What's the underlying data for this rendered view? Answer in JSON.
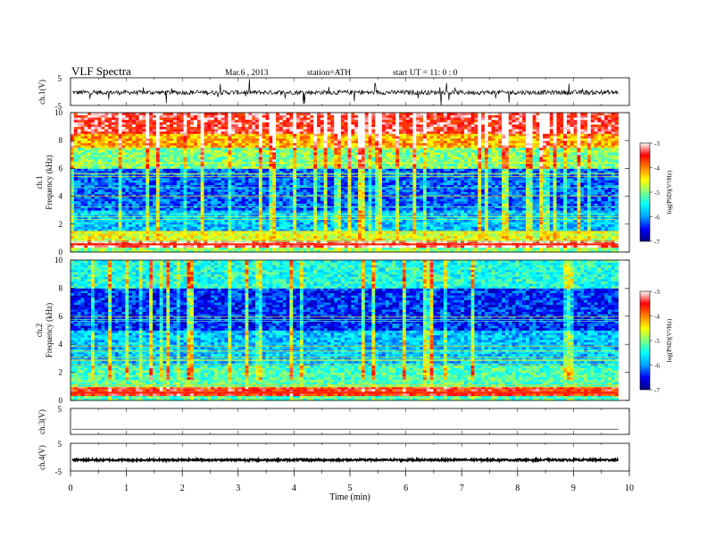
{
  "header": {
    "title": "VLF  Spectra",
    "date": "Mar.6  , 2013",
    "station": "station=ATH",
    "start": "start  UT =   11: 0  : 0"
  },
  "colorscale": {
    "stops": [
      "#000080",
      "#0000ff",
      "#00a0ff",
      "#00ffff",
      "#80ff80",
      "#ffff00",
      "#ff8000",
      "#ff0000",
      "#ffffff"
    ]
  },
  "chart_data": [
    {
      "type": "line",
      "name": "ch1-waveform",
      "ylabel": "ch.1(V)",
      "ylim": [
        -5,
        5
      ],
      "yticks": [
        "5",
        "-5"
      ],
      "xlim": [
        0,
        10
      ],
      "baseline": -0.3,
      "amplitude": 0.8,
      "spike_amplitude": 4.5
    },
    {
      "type": "heatmap",
      "name": "ch1-spectrogram",
      "ylabel": "ch.1\nFrequency (kHz)",
      "ylabel_lines": [
        "ch.1",
        "Frequency  (kHz)"
      ],
      "ylim": [
        0,
        10
      ],
      "yticks": [
        "0",
        "2",
        "4",
        "6",
        "8",
        "10"
      ],
      "xlim": [
        0,
        9.8
      ],
      "colorbar": {
        "label": "log(PSD)(V²/Hz)",
        "range": [
          -7,
          -3
        ],
        "ticks": [
          "-3",
          "-4",
          "-5",
          "-6",
          "-7"
        ]
      },
      "bands_kHz": [
        {
          "from": 0.0,
          "to": 0.4,
          "level": -5.0
        },
        {
          "from": 0.4,
          "to": 0.8,
          "level": -3.2
        },
        {
          "from": 0.8,
          "to": 1.5,
          "level": -4.6
        },
        {
          "from": 1.5,
          "to": 3.0,
          "level": -5.8
        },
        {
          "from": 3.0,
          "to": 6.0,
          "level": -6.2
        },
        {
          "from": 6.0,
          "to": 7.5,
          "level": -5.0
        },
        {
          "from": 7.5,
          "to": 8.5,
          "level": -4.2
        },
        {
          "from": 8.5,
          "to": 10.0,
          "level": -3.4
        }
      ]
    },
    {
      "type": "heatmap",
      "name": "ch2-spectrogram",
      "ylabel_lines": [
        "ch.2",
        "Frequency  (kHz)"
      ],
      "ylim": [
        0,
        10
      ],
      "yticks": [
        "0",
        "2",
        "4",
        "6",
        "8",
        "10"
      ],
      "xlim": [
        0,
        9.8
      ],
      "colorbar": {
        "label": "log(PSD)(V²/Hz)",
        "range": [
          -7,
          -3
        ],
        "ticks": [
          "-3",
          "-4",
          "-5",
          "-6",
          "-7"
        ]
      },
      "bands_kHz": [
        {
          "from": 0.0,
          "to": 0.4,
          "level": -5.2
        },
        {
          "from": 0.4,
          "to": 1.0,
          "level": -3.6
        },
        {
          "from": 1.0,
          "to": 2.5,
          "level": -5.2
        },
        {
          "from": 2.5,
          "to": 5.0,
          "level": -5.8
        },
        {
          "from": 5.0,
          "to": 8.0,
          "level": -6.4
        },
        {
          "from": 8.0,
          "to": 10.0,
          "level": -5.4
        }
      ]
    },
    {
      "type": "line",
      "name": "ch3-waveform",
      "ylabel": "ch.3(V)",
      "ylim": [
        -5,
        5
      ],
      "yticks": [
        "5",
        ""
      ],
      "xlim": [
        0,
        10
      ],
      "baseline": -3.0,
      "amplitude": 0.0
    },
    {
      "type": "line",
      "name": "ch4-waveform",
      "ylabel": "ch.4(V)",
      "ylim": [
        -5,
        5
      ],
      "yticks": [
        "5",
        "-5"
      ],
      "xlim": [
        0,
        10
      ],
      "baseline": -1.0,
      "amplitude": 0.35
    }
  ],
  "xaxis": {
    "label": "Time  (min)",
    "ticks": [
      "0",
      "1",
      "2",
      "3",
      "4",
      "5",
      "6",
      "7",
      "8",
      "9",
      "10"
    ]
  }
}
